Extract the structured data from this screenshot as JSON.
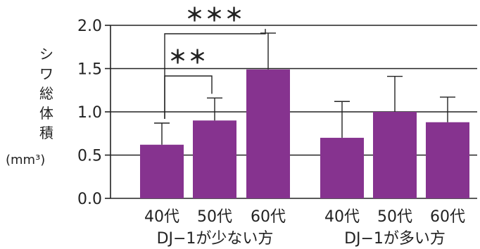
{
  "chart_data": {
    "type": "bar",
    "ylabel": "シワ総体積",
    "yunit": "(mm³)",
    "ylim": [
      0,
      2.0
    ],
    "yticks": [
      "0.0",
      "0.5",
      "1.0",
      "1.5",
      "2.0"
    ],
    "ytick_values": [
      0,
      0.5,
      1.0,
      1.5,
      2.0
    ],
    "grid": true,
    "groups": [
      {
        "label": "DJ−1が少ない方",
        "categories": [
          "40代",
          "50代",
          "60代"
        ],
        "values": [
          0.62,
          0.9,
          1.49
        ],
        "errors": [
          0.25,
          0.26,
          0.42
        ]
      },
      {
        "label": "DJ−1が多い方",
        "categories": [
          "40代",
          "50代",
          "60代"
        ],
        "values": [
          0.7,
          1.0,
          0.88
        ],
        "errors": [
          0.42,
          0.41,
          0.29
        ]
      }
    ],
    "significance": [
      {
        "label": "＊＊",
        "group": 0,
        "from": 0,
        "to": 1
      },
      {
        "label": "＊＊＊",
        "group": 0,
        "from": 0,
        "to": 2
      }
    ],
    "colors": {
      "bar": "#86338f",
      "axis": "#222222",
      "grid": "#222222"
    }
  }
}
